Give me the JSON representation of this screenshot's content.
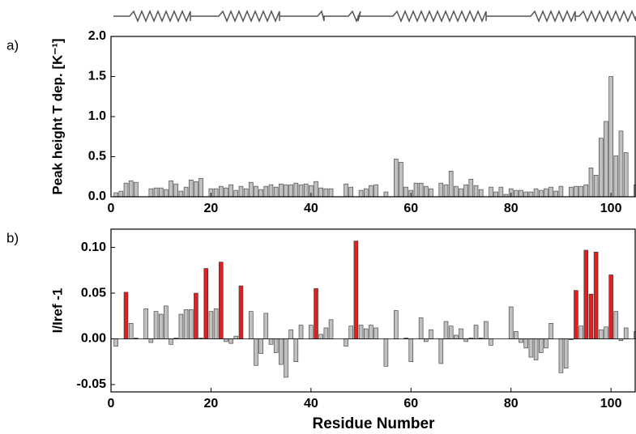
{
  "chart_data": [
    {
      "type": "bar",
      "label": "a)",
      "ylabel": "Peak height T dep. [K⁻¹]",
      "color": "#c0c0c0",
      "x": [
        1,
        2,
        3,
        4,
        5,
        6,
        7,
        8,
        9,
        10,
        11,
        12,
        13,
        14,
        15,
        16,
        17,
        18,
        19,
        20,
        21,
        22,
        23,
        24,
        25,
        26,
        27,
        28,
        29,
        30,
        31,
        32,
        33,
        34,
        35,
        36,
        37,
        38,
        39,
        40,
        41,
        42,
        43,
        44,
        45,
        46,
        47,
        48,
        49,
        50,
        51,
        52,
        53,
        54,
        55,
        56,
        57,
        58,
        59,
        60,
        61,
        62,
        63,
        64,
        65,
        66,
        67,
        68,
        69,
        70,
        71,
        72,
        73,
        74,
        75,
        76,
        77,
        78,
        79,
        80,
        81,
        82,
        83,
        84,
        85,
        86,
        87,
        88,
        89,
        90,
        91,
        92,
        93,
        94,
        95,
        96,
        97,
        98,
        99,
        100,
        101,
        102,
        103,
        104,
        105
      ],
      "values": [
        0.05,
        0.07,
        0.17,
        0.2,
        0.18,
        null,
        null,
        0.1,
        0.11,
        0.11,
        0.09,
        0.2,
        0.16,
        0.07,
        0.12,
        0.21,
        0.19,
        0.23,
        null,
        0.1,
        0.1,
        0.13,
        0.11,
        0.15,
        0.08,
        0.13,
        0.1,
        0.18,
        0.13,
        0.09,
        0.13,
        0.15,
        0.12,
        0.16,
        0.15,
        0.15,
        0.17,
        0.15,
        0.16,
        0.14,
        0.19,
        0.11,
        0.1,
        0.1,
        null,
        null,
        0.16,
        0.12,
        null,
        0.08,
        0.1,
        0.14,
        0.15,
        null,
        0.06,
        null,
        0.47,
        0.43,
        0.12,
        0.08,
        0.17,
        0.17,
        0.13,
        0.1,
        null,
        0.17,
        0.15,
        0.32,
        0.13,
        0.1,
        0.15,
        0.22,
        0.14,
        0.09,
        null,
        0.12,
        0.06,
        0.12,
        0.03,
        0.1,
        0.08,
        0.08,
        0.06,
        0.06,
        0.1,
        0.08,
        0.1,
        0.12,
        0.07,
        0.13,
        null,
        0.12,
        0.13,
        0.13,
        0.15,
        0.36,
        0.27,
        0.73,
        0.94,
        1.5,
        0.51,
        0.82,
        0.55,
        null,
        0.15
      ],
      "xlim": [
        0,
        105
      ],
      "xticks": [
        0,
        20,
        40,
        60,
        80,
        100
      ],
      "ylim": [
        0,
        2.0
      ],
      "yticks": [
        {
          "value": 0,
          "label": "0.0"
        },
        {
          "value": 0.5,
          "label": "0.5"
        },
        {
          "value": 1.0,
          "label": "1.0"
        },
        {
          "value": 1.5,
          "label": "1.5"
        },
        {
          "value": 2.0,
          "label": "2.0"
        }
      ]
    },
    {
      "type": "bar",
      "label": "b)",
      "ylabel": "I/Iref -1",
      "xlabel": "Residue Number",
      "x": [
        1,
        2,
        3,
        4,
        5,
        6,
        7,
        8,
        9,
        10,
        11,
        12,
        13,
        14,
        15,
        16,
        17,
        18,
        19,
        20,
        21,
        22,
        23,
        24,
        25,
        26,
        27,
        28,
        29,
        30,
        31,
        32,
        33,
        34,
        35,
        36,
        37,
        38,
        39,
        40,
        41,
        42,
        43,
        44,
        45,
        46,
        47,
        48,
        49,
        50,
        51,
        52,
        53,
        54,
        55,
        56,
        57,
        58,
        59,
        60,
        61,
        62,
        63,
        64,
        65,
        66,
        67,
        68,
        69,
        70,
        71,
        72,
        73,
        74,
        75,
        76,
        77,
        78,
        79,
        80,
        81,
        82,
        83,
        84,
        85,
        86,
        87,
        88,
        89,
        90,
        91,
        92,
        93,
        94,
        95,
        96,
        97,
        98,
        99,
        100,
        101,
        102,
        103,
        104,
        105
      ],
      "values": [
        -0.008,
        null,
        0.051,
        0.017,
        0.001,
        null,
        0.033,
        -0.004,
        0.03,
        0.027,
        0.036,
        -0.006,
        0.001,
        0.027,
        0.032,
        0.032,
        0.05,
        0.001,
        0.077,
        0.03,
        0.033,
        0.084,
        -0.003,
        -0.005,
        0.003,
        0.058,
        null,
        0.03,
        -0.029,
        -0.016,
        0.028,
        -0.006,
        -0.015,
        -0.028,
        -0.042,
        0.01,
        -0.025,
        0.015,
        null,
        0.015,
        0.055,
        0.005,
        0.012,
        0.021,
        null,
        null,
        -0.008,
        0.014,
        0.107,
        0.015,
        0.011,
        0.015,
        0.012,
        null,
        -0.03,
        null,
        0.031,
        null,
        0.001,
        -0.025,
        null,
        0.023,
        -0.003,
        0.01,
        null,
        -0.027,
        0.019,
        0.014,
        0.004,
        0.011,
        -0.003,
        0.001,
        0.015,
        0.001,
        0.019,
        -0.007,
        null,
        null,
        null,
        0.035,
        0.008,
        -0.004,
        -0.01,
        -0.02,
        -0.023,
        -0.015,
        -0.01,
        0.017,
        null,
        -0.037,
        -0.032,
        -0.001,
        0.053,
        0.014,
        0.097,
        0.049,
        0.095,
        0.01,
        0.013,
        0.07,
        0.03,
        -0.002,
        0.012,
        null,
        0.008
      ],
      "colors": [
        "#c0c0c0",
        "#c0c0c0",
        "#e02020",
        "#c0c0c0",
        "#c0c0c0",
        "#c0c0c0",
        "#c0c0c0",
        "#c0c0c0",
        "#c0c0c0",
        "#c0c0c0",
        "#c0c0c0",
        "#c0c0c0",
        "#c0c0c0",
        "#c0c0c0",
        "#c0c0c0",
        "#c0c0c0",
        "#e02020",
        "#c0c0c0",
        "#e02020",
        "#c0c0c0",
        "#c0c0c0",
        "#e02020",
        "#c0c0c0",
        "#c0c0c0",
        "#c0c0c0",
        "#e02020",
        "#c0c0c0",
        "#c0c0c0",
        "#c0c0c0",
        "#c0c0c0",
        "#c0c0c0",
        "#c0c0c0",
        "#c0c0c0",
        "#c0c0c0",
        "#c0c0c0",
        "#c0c0c0",
        "#c0c0c0",
        "#c0c0c0",
        "#c0c0c0",
        "#c0c0c0",
        "#e02020",
        "#c0c0c0",
        "#c0c0c0",
        "#c0c0c0",
        "#c0c0c0",
        "#c0c0c0",
        "#c0c0c0",
        "#c0c0c0",
        "#e02020",
        "#c0c0c0",
        "#c0c0c0",
        "#c0c0c0",
        "#c0c0c0",
        "#c0c0c0",
        "#c0c0c0",
        "#c0c0c0",
        "#c0c0c0",
        "#c0c0c0",
        "#c0c0c0",
        "#c0c0c0",
        "#c0c0c0",
        "#c0c0c0",
        "#c0c0c0",
        "#c0c0c0",
        "#c0c0c0",
        "#c0c0c0",
        "#c0c0c0",
        "#c0c0c0",
        "#c0c0c0",
        "#c0c0c0",
        "#c0c0c0",
        "#c0c0c0",
        "#c0c0c0",
        "#c0c0c0",
        "#c0c0c0",
        "#c0c0c0",
        "#c0c0c0",
        "#c0c0c0",
        "#c0c0c0",
        "#c0c0c0",
        "#c0c0c0",
        "#c0c0c0",
        "#c0c0c0",
        "#c0c0c0",
        "#c0c0c0",
        "#c0c0c0",
        "#c0c0c0",
        "#c0c0c0",
        "#c0c0c0",
        "#c0c0c0",
        "#c0c0c0",
        "#c0c0c0",
        "#e02020",
        "#c0c0c0",
        "#e02020",
        "#e02020",
        "#e02020",
        "#c0c0c0",
        "#c0c0c0",
        "#e02020",
        "#c0c0c0",
        "#c0c0c0",
        "#c0c0c0",
        "#c0c0c0",
        "#c0c0c0"
      ],
      "xlim": [
        0,
        105
      ],
      "xticks": [
        0,
        20,
        40,
        60,
        80,
        100
      ],
      "ylim": [
        -0.058,
        0.12
      ],
      "yticks": [
        {
          "value": -0.05,
          "label": "-0.05"
        },
        {
          "value": 0,
          "label": "0.00"
        },
        {
          "value": 0.05,
          "label": "0.05"
        },
        {
          "value": 0.1,
          "label": "0.10"
        }
      ]
    }
  ]
}
